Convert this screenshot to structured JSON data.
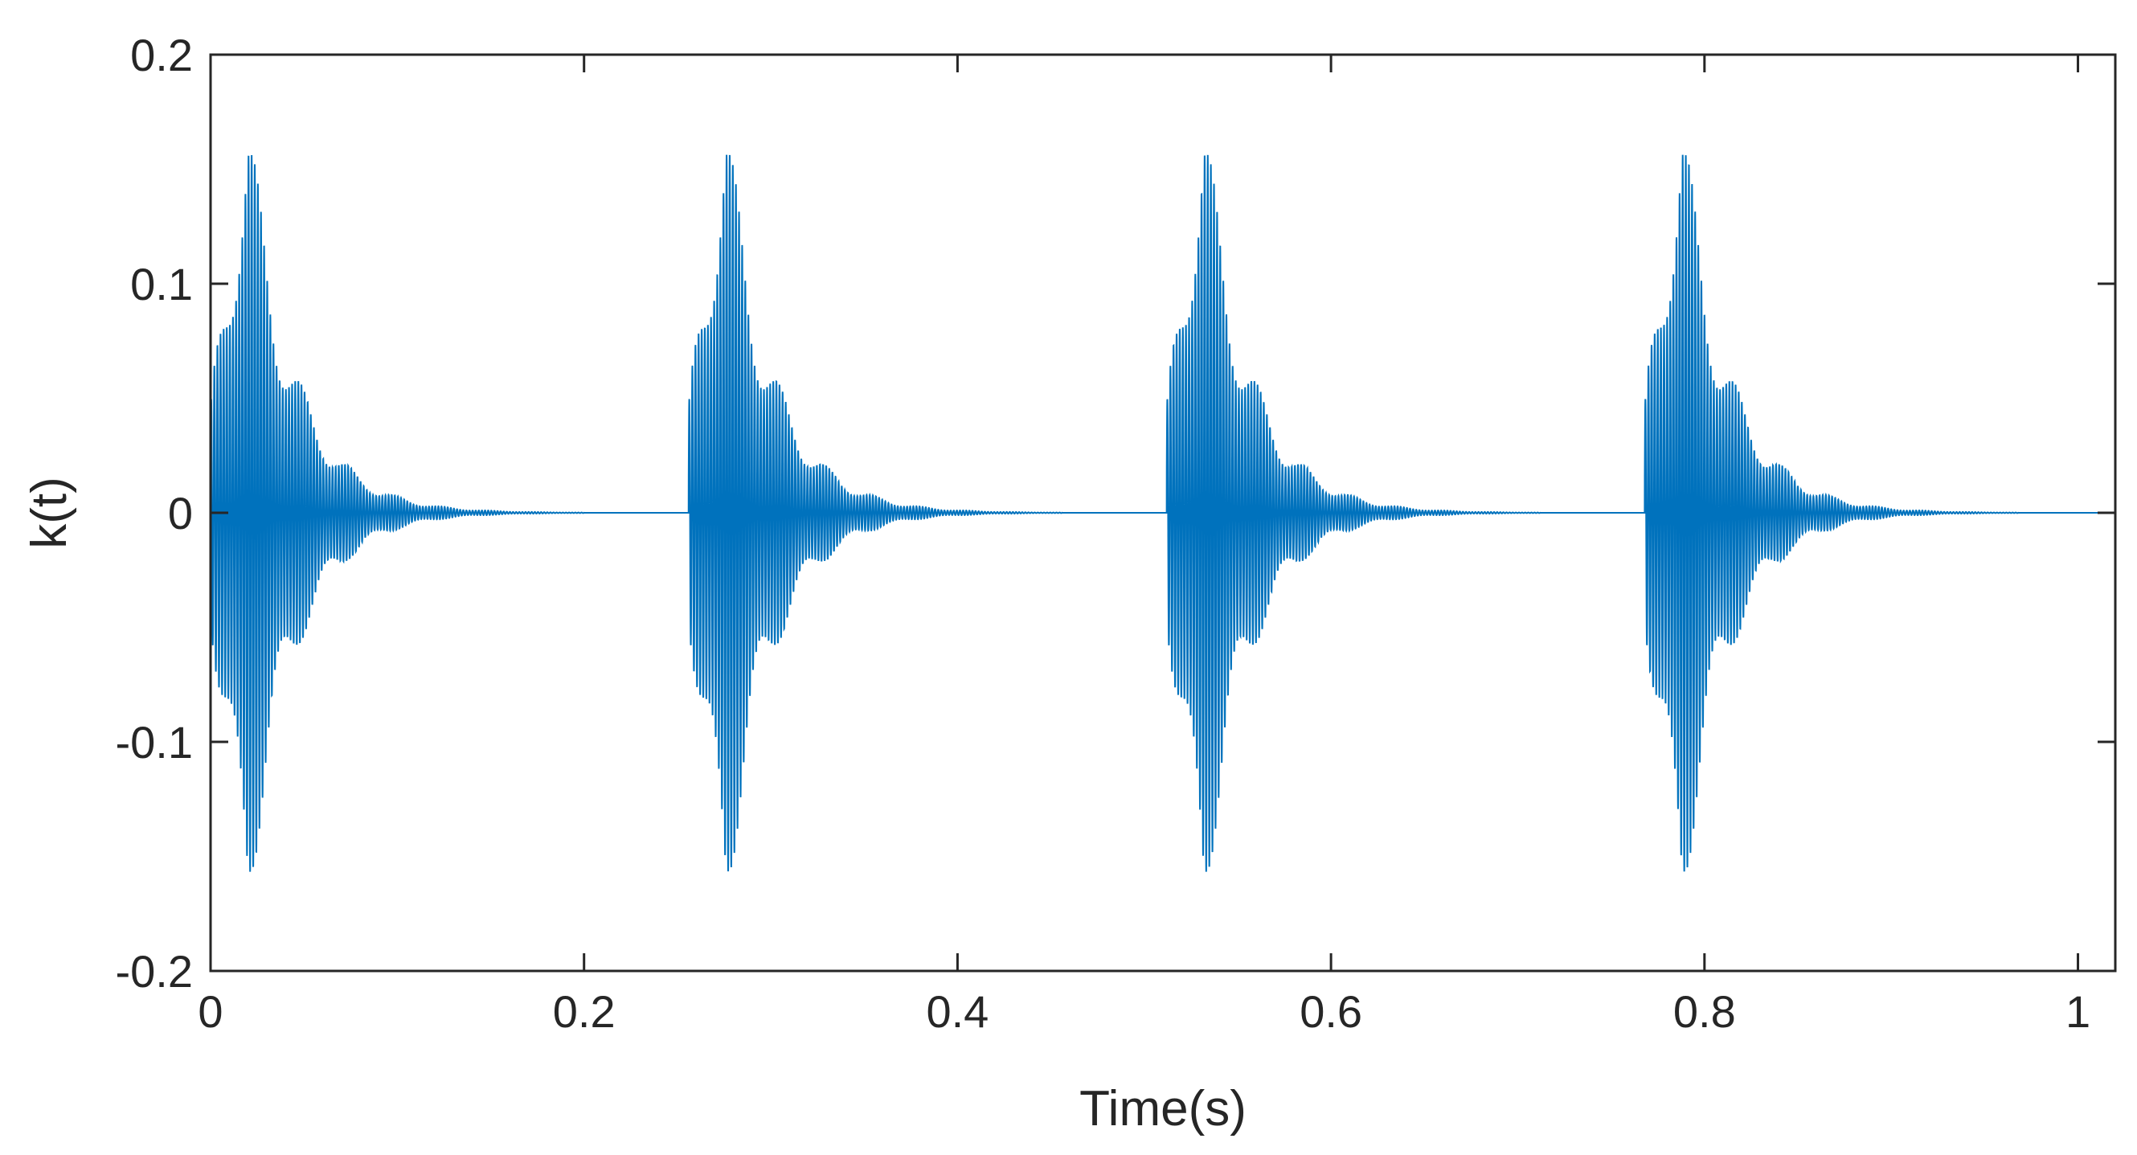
{
  "chart_data": {
    "type": "line",
    "title": "",
    "xlabel": "Time(s)",
    "ylabel": "k(t)",
    "xlim": [
      0,
      1.02
    ],
    "ylim": [
      -0.2,
      0.2
    ],
    "x_ticks": [
      0,
      0.2,
      0.4,
      0.6,
      0.8,
      1
    ],
    "x_tick_labels": [
      "0",
      "0.2",
      "0.4",
      "0.6",
      "0.8",
      "1"
    ],
    "y_ticks": [
      -0.2,
      -0.1,
      0,
      0.1,
      0.2
    ],
    "y_tick_labels": [
      "-0.2",
      "-0.1",
      "0",
      "0.1",
      "0.2"
    ],
    "grid": false,
    "legend": "none",
    "series": [
      {
        "color": "#0072BD",
        "impulse_onsets": [
          0.0,
          0.256,
          0.512,
          0.768
        ],
        "peak_amplitude": 0.178,
        "peak_time_after_onset": 0.02,
        "decay_to_zero_after_onset": 0.2,
        "oscillation_frequency_hz": 600
      }
    ]
  }
}
